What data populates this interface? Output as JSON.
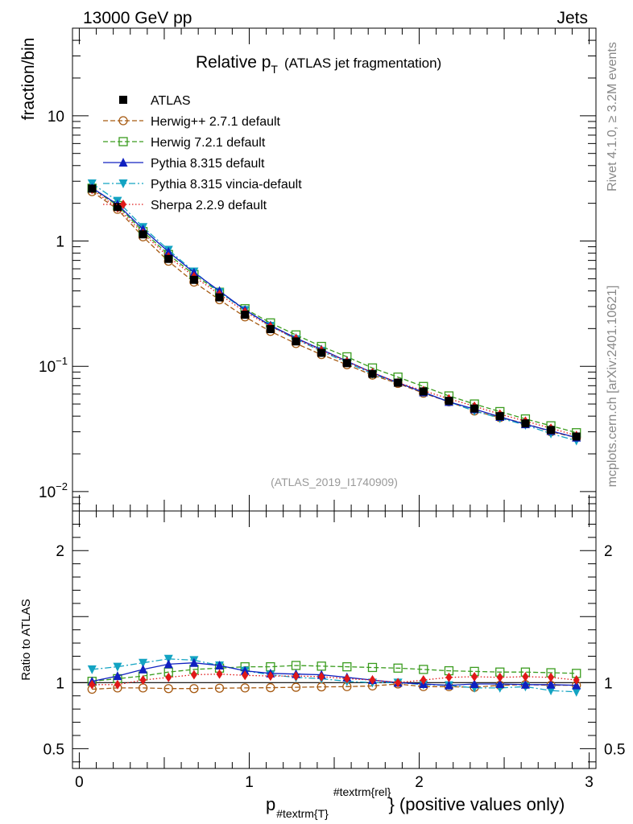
{
  "header": {
    "energy_label": "13000 GeV pp",
    "category_label": "Jets"
  },
  "side_labels": {
    "rivet": "Rivet 4.1.0, ≥ 3.2M events",
    "mcplots": "mcplots.cern.ch [arXiv:2401.10621]"
  },
  "chart_data": [
    {
      "type": "line",
      "panel": "main",
      "title_main": "Relative p",
      "title_sub": "T",
      "title_tail": "(ATLAS jet fragmentation)",
      "ylabel": "fraction/bin",
      "yscale": "log",
      "ylim": [
        0.007,
        50
      ],
      "xlim": [
        -0.04,
        3.04
      ],
      "yticks": [
        {
          "value": 0.01,
          "base": "10",
          "exp": "−2"
        },
        {
          "value": 0.1,
          "base": "10",
          "exp": "−1"
        },
        {
          "value": 1,
          "label": "1"
        },
        {
          "value": 10,
          "label": "10"
        }
      ],
      "watermark": "(ATLAS_2019_I1740909)",
      "x": [
        0.075,
        0.225,
        0.375,
        0.525,
        0.675,
        0.825,
        0.975,
        1.125,
        1.275,
        1.425,
        1.575,
        1.725,
        1.875,
        2.025,
        2.175,
        2.325,
        2.475,
        2.625,
        2.775,
        2.925
      ],
      "series": [
        {
          "key": "atlas",
          "name": "ATLAS",
          "values": [
            2.62,
            1.87,
            1.13,
            0.72,
            0.49,
            0.355,
            0.258,
            0.198,
            0.158,
            0.128,
            0.106,
            0.087,
            0.074,
            0.063,
            0.053,
            0.046,
            0.04,
            0.035,
            0.031,
            0.0275
          ]
        },
        {
          "key": "herwigpp",
          "name": "Herwig++ 2.7.1 default",
          "values": [
            2.48,
            1.79,
            1.08,
            0.69,
            0.47,
            0.34,
            0.248,
            0.19,
            0.152,
            0.124,
            0.103,
            0.085,
            0.073,
            0.061,
            0.052,
            0.044,
            0.039,
            0.035,
            0.03,
            0.027
          ]
        },
        {
          "key": "herwig7",
          "name": "Herwig 7.2.1 default",
          "values": [
            2.64,
            1.92,
            1.19,
            0.78,
            0.54,
            0.39,
            0.288,
            0.222,
            0.178,
            0.144,
            0.119,
            0.097,
            0.082,
            0.069,
            0.058,
            0.05,
            0.0435,
            0.038,
            0.0335,
            0.0295
          ]
        },
        {
          "key": "pythia",
          "name": "Pythia 8.315 default",
          "values": [
            2.65,
            1.96,
            1.24,
            0.82,
            0.56,
            0.4,
            0.282,
            0.212,
            0.168,
            0.136,
            0.11,
            0.089,
            0.074,
            0.062,
            0.052,
            0.0455,
            0.0395,
            0.0345,
            0.0305,
            0.027
          ]
        },
        {
          "key": "vincia",
          "name": "Pythia 8.315 vincia-default",
          "values": [
            2.88,
            2.09,
            1.29,
            0.85,
            0.57,
            0.39,
            0.281,
            0.21,
            0.164,
            0.132,
            0.107,
            0.087,
            0.074,
            0.062,
            0.052,
            0.044,
            0.0385,
            0.034,
            0.029,
            0.0255
          ]
        },
        {
          "key": "sherpa",
          "name": "Sherpa 2.2.9 default",
          "values": [
            2.58,
            1.84,
            1.15,
            0.75,
            0.52,
            0.375,
            0.272,
            0.208,
            0.166,
            0.134,
            0.109,
            0.089,
            0.074,
            0.064,
            0.055,
            0.048,
            0.0415,
            0.0365,
            0.032,
            0.028
          ]
        }
      ]
    },
    {
      "type": "line",
      "panel": "ratio",
      "ylabel": "Ratio to ATLAS",
      "ylim": [
        0.35,
        2.3
      ],
      "xlim": [
        -0.04,
        3.04
      ],
      "yticks": [
        0.5,
        1,
        2
      ],
      "xlabel": "p",
      "xlabel_sub": "#textrm{T}",
      "xlabel_sup": "#textrm{rel}",
      "xlabel_tail": "} (positive values only)",
      "xticks": [
        0,
        1,
        2,
        3
      ],
      "series": [
        {
          "key": "herwigpp",
          "values": [
            0.95,
            0.96,
            0.96,
            0.955,
            0.955,
            0.958,
            0.96,
            0.962,
            0.965,
            0.968,
            0.97,
            0.975,
            0.99,
            0.97,
            0.97,
            0.965,
            0.98,
            0.985,
            0.98,
            0.98
          ]
        },
        {
          "key": "herwig7",
          "values": [
            1.01,
            1.03,
            1.05,
            1.08,
            1.1,
            1.11,
            1.12,
            1.12,
            1.13,
            1.125,
            1.12,
            1.115,
            1.11,
            1.1,
            1.09,
            1.085,
            1.08,
            1.08,
            1.075,
            1.07
          ]
        },
        {
          "key": "pythia",
          "values": [
            1.01,
            1.05,
            1.1,
            1.14,
            1.15,
            1.13,
            1.09,
            1.07,
            1.065,
            1.06,
            1.04,
            1.02,
            1.0,
            0.99,
            0.98,
            0.99,
            0.99,
            0.985,
            0.985,
            0.98
          ]
        },
        {
          "key": "vincia",
          "values": [
            1.1,
            1.12,
            1.15,
            1.18,
            1.17,
            1.13,
            1.09,
            1.06,
            1.04,
            1.03,
            1.01,
            1.0,
            1.0,
            0.985,
            0.98,
            0.96,
            0.96,
            0.97,
            0.94,
            0.93
          ]
        },
        {
          "key": "sherpa",
          "values": [
            0.985,
            0.985,
            1.02,
            1.04,
            1.06,
            1.065,
            1.055,
            1.05,
            1.05,
            1.045,
            1.03,
            1.02,
            1.0,
            1.02,
            1.04,
            1.045,
            1.04,
            1.045,
            1.04,
            1.02
          ]
        }
      ]
    }
  ],
  "styles": {
    "atlas": {
      "color": "#000000",
      "marker": "square-filled",
      "dash": ""
    },
    "herwigpp": {
      "color": "#a65a12",
      "marker": "circle-open",
      "dash": "6,3"
    },
    "herwig7": {
      "color": "#3a9c1e",
      "marker": "square-open",
      "dash": "6,3"
    },
    "pythia": {
      "color": "#1020c0",
      "marker": "triangle-up-filled",
      "dash": ""
    },
    "vincia": {
      "color": "#13a3c2",
      "marker": "triangle-down-filled",
      "dash": "8,3,2,3"
    },
    "sherpa": {
      "color": "#e01818",
      "marker": "diamond-filled",
      "dash": "1.5,2.5"
    }
  }
}
